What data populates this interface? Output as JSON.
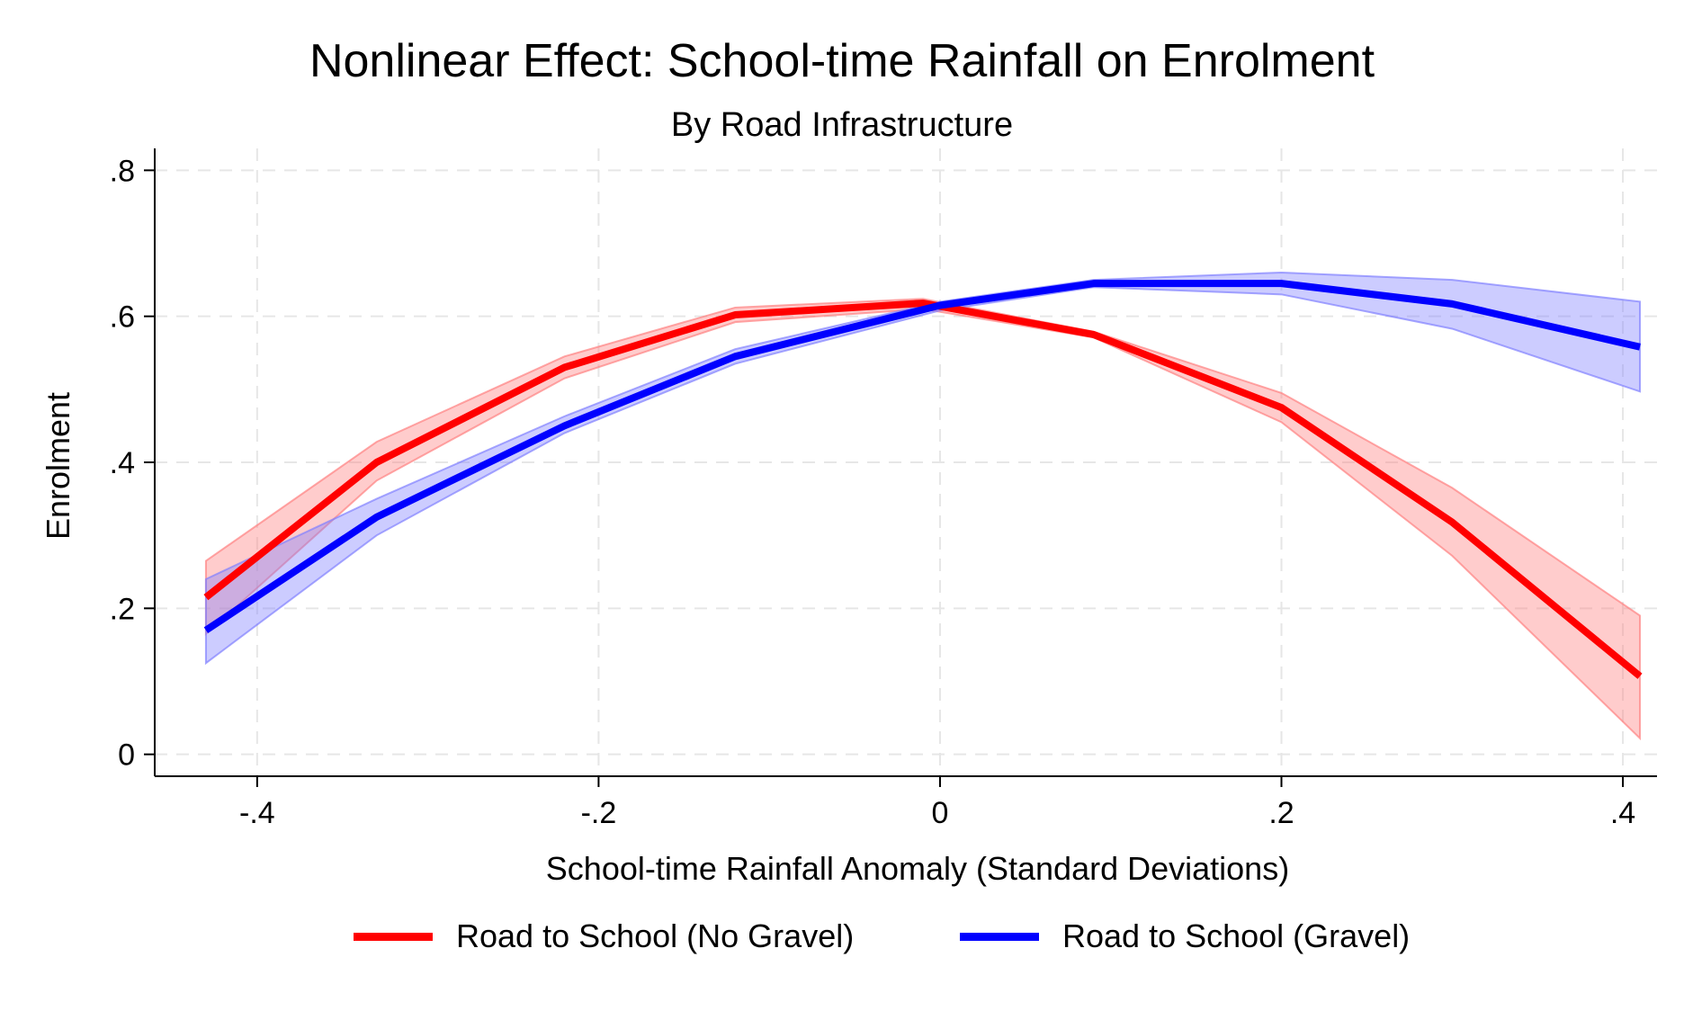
{
  "chart_data": {
    "type": "line",
    "title": "Nonlinear Effect: School-time Rainfall on Enrolment",
    "subtitle": "By Road Infrastructure",
    "xlabel": "School-time Rainfall Anomaly (Standard Deviations)",
    "ylabel": "Enrolment",
    "xlim": [
      -0.46,
      0.42
    ],
    "ylim": [
      -0.03,
      0.83
    ],
    "x_ticks": [
      -0.4,
      -0.2,
      0,
      0.2,
      0.4
    ],
    "x_tick_labels": [
      "-.4",
      "-.2",
      "0",
      ".2",
      ".4"
    ],
    "y_ticks": [
      0,
      0.2,
      0.4,
      0.6,
      0.8
    ],
    "y_tick_labels": [
      "0",
      ".2",
      ".4",
      ".6",
      ".8"
    ],
    "grid": true,
    "legend_position": "bottom",
    "series": [
      {
        "name": "Road to School (No Gravel)",
        "color": "#ff0000",
        "band_color": "#ff8080",
        "x": [
          -0.43,
          -0.33,
          -0.22,
          -0.12,
          -0.01,
          0.09,
          0.2,
          0.3,
          0.41
        ],
        "y": [
          0.215,
          0.4,
          0.53,
          0.602,
          0.618,
          0.575,
          0.475,
          0.318,
          0.107
        ],
        "ci_low": [
          0.165,
          0.375,
          0.515,
          0.592,
          0.61,
          0.571,
          0.455,
          0.272,
          0.022
        ],
        "ci_high": [
          0.265,
          0.428,
          0.545,
          0.612,
          0.624,
          0.579,
          0.495,
          0.365,
          0.19
        ]
      },
      {
        "name": "Road to School (Gravel)",
        "color": "#0000ff",
        "band_color": "#8080ff",
        "x": [
          -0.43,
          -0.33,
          -0.22,
          -0.12,
          0,
          0.09,
          0.2,
          0.3,
          0.41
        ],
        "y": [
          0.17,
          0.325,
          0.45,
          0.545,
          0.615,
          0.645,
          0.645,
          0.617,
          0.558
        ],
        "ci_low": [
          0.125,
          0.3,
          0.44,
          0.535,
          0.608,
          0.64,
          0.63,
          0.583,
          0.497
        ],
        "ci_high": [
          0.24,
          0.35,
          0.463,
          0.555,
          0.62,
          0.65,
          0.66,
          0.65,
          0.62
        ]
      }
    ]
  }
}
